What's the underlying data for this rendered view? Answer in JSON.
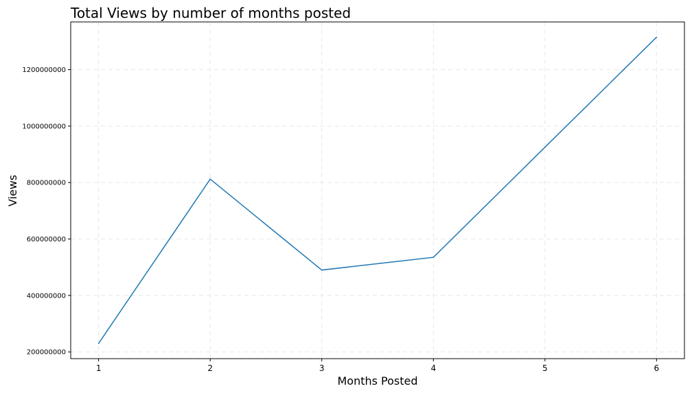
{
  "chart_data": {
    "type": "line",
    "title": "Total Views by number of months posted",
    "xlabel": "Months Posted",
    "ylabel": "Views",
    "x": [
      1,
      2,
      3,
      4,
      5,
      6
    ],
    "series": [
      {
        "values": [
          230000000,
          812000000,
          490000000,
          535000000,
          925000000,
          1315000000
        ],
        "color": "#1f77b4"
      }
    ],
    "xticks": [
      "1",
      "2",
      "3",
      "4",
      "5",
      "6"
    ],
    "yticks": [
      200000000,
      400000000,
      600000000,
      800000000,
      1000000000,
      1200000000
    ],
    "ytick_labels": [
      "200000000",
      "400000000",
      "600000000",
      "800000000",
      "1000000000",
      "1200000000"
    ],
    "xlim": [
      0.75,
      6.25
    ],
    "ylim": [
      176000000,
      1369000000
    ],
    "grid": true
  }
}
